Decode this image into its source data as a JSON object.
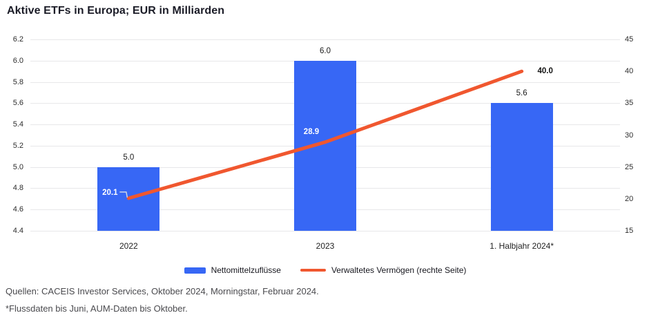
{
  "title": "Aktive ETFs in Europa; EUR in Milliarden",
  "chart_data": {
    "type": "bar",
    "subtype": "bar-line-combo-dual-axis",
    "categories": [
      "2022",
      "2023",
      "1. Halbjahr 2024*"
    ],
    "series": [
      {
        "name": "Nettomittelzuflüsse",
        "type": "bar",
        "axis": "left",
        "values": [
          5.0,
          6.0,
          5.6
        ],
        "value_labels": [
          "5.0",
          "6.0",
          "5.6"
        ],
        "color": "#3767F5"
      },
      {
        "name": "Verwaltetes Vermögen (rechte Seite)",
        "type": "line",
        "axis": "right",
        "values": [
          20.1,
          28.9,
          40.0
        ],
        "value_labels": [
          "20.1",
          "28.9",
          "40.0"
        ],
        "color": "#F0572F"
      }
    ],
    "left_axis": {
      "min": 4.4,
      "max": 6.2,
      "step": 0.2,
      "tick_labels": [
        "6.2",
        "6.0",
        "5.8",
        "5.6",
        "5.4",
        "5.2",
        "5.0",
        "4.8",
        "4.6",
        "4.4"
      ]
    },
    "right_axis": {
      "min": 15,
      "max": 45,
      "step": 5,
      "tick_labels": [
        "45",
        "40",
        "35",
        "30",
        "25",
        "20",
        "15"
      ]
    },
    "grid": true,
    "legend_position": "bottom"
  },
  "footer": {
    "sources": "Quellen: CACEIS Investor Services, Oktober 2024, Morningstar, Februar 2024.",
    "footnote": "*Flussdaten bis Juni, AUM-Daten bis Oktober."
  },
  "colors": {
    "bar": "#3767F5",
    "line": "#F0572F",
    "grid": "#E7E7E9",
    "title_text": "#1B1C27",
    "axis_text": "#2D2D2D",
    "footer_text": "#4A4A4E",
    "label_on_bar": "#FFFFFF",
    "label_dark": "#111111",
    "leader_line": "#CDD5E6"
  }
}
